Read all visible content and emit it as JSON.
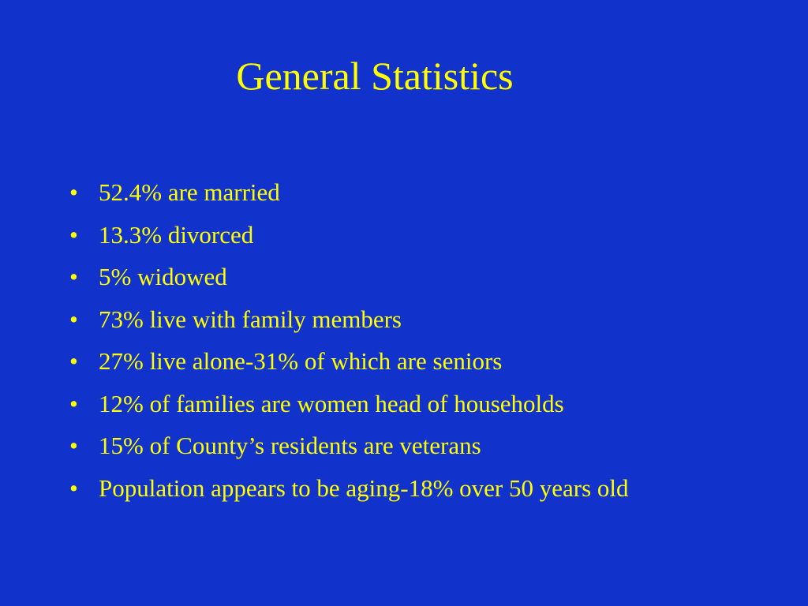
{
  "slide": {
    "title": "General Statistics",
    "bullets": [
      "52.4% are married",
      "13.3% divorced",
      "5% widowed",
      "73% live with family members",
      "27% live alone-31% of which are seniors",
      "12% of families are women head of households",
      "15% of County’s residents are veterans",
      "Population appears to be aging-18% over 50 years old"
    ]
  }
}
